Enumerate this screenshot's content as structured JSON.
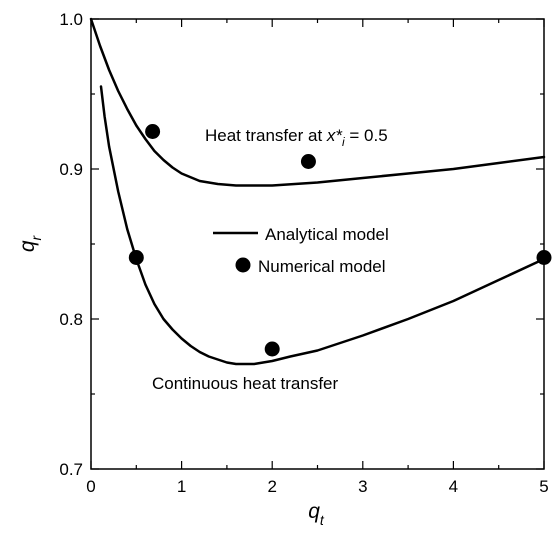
{
  "chart_data": {
    "type": "line",
    "xlabel": {
      "main": "q",
      "sub": "t"
    },
    "ylabel": {
      "main": "q",
      "sub": "r"
    },
    "xlim": [
      0,
      5
    ],
    "ylim": [
      0.7,
      1.0
    ],
    "xticks": [
      0,
      1,
      2,
      3,
      4,
      5
    ],
    "yticks": [
      0.7,
      0.8,
      0.9,
      1.0
    ],
    "xtick_labels": [
      "0",
      "1",
      "2",
      "3",
      "4",
      "5"
    ],
    "ytick_labels": [
      "0.7",
      "0.8",
      "0.9",
      "1.0"
    ],
    "grid": false,
    "legend": {
      "position": "center",
      "entries": [
        {
          "label": "Analytical model",
          "marker": "line"
        },
        {
          "label": "Numerical model",
          "marker": "circle"
        }
      ]
    },
    "annotations": [
      {
        "text_pre": "Heat transfer at ",
        "var": "x*",
        "sub": "i",
        "text_post": " = 0.5"
      },
      {
        "text": "Continuous heat transfer"
      }
    ],
    "series": [
      {
        "kind": "analytical",
        "x": [
          0.0,
          0.1,
          0.2,
          0.3,
          0.4,
          0.5,
          0.6,
          0.7,
          0.8,
          0.9,
          1.0,
          1.2,
          1.4,
          1.6,
          1.8,
          2.0,
          2.5,
          3.0,
          3.5,
          4.0,
          4.5,
          5.0
        ],
        "y": [
          1.0,
          0.982,
          0.966,
          0.952,
          0.94,
          0.929,
          0.92,
          0.912,
          0.906,
          0.901,
          0.897,
          0.892,
          0.89,
          0.889,
          0.889,
          0.889,
          0.891,
          0.894,
          0.897,
          0.9,
          0.904,
          0.908
        ]
      },
      {
        "kind": "analytical",
        "x": [
          0.11,
          0.15,
          0.2,
          0.3,
          0.4,
          0.5,
          0.6,
          0.7,
          0.8,
          0.9,
          1.0,
          1.1,
          1.2,
          1.3,
          1.4,
          1.5,
          1.6,
          1.7,
          1.8,
          1.9,
          2.0,
          2.2,
          2.5,
          3.0,
          3.5,
          4.0,
          4.5,
          5.0
        ],
        "y": [
          0.955,
          0.935,
          0.915,
          0.885,
          0.86,
          0.84,
          0.823,
          0.81,
          0.8,
          0.793,
          0.787,
          0.782,
          0.778,
          0.775,
          0.773,
          0.771,
          0.77,
          0.77,
          0.77,
          0.771,
          0.772,
          0.775,
          0.779,
          0.789,
          0.8,
          0.812,
          0.826,
          0.84
        ]
      },
      {
        "kind": "numerical",
        "x": [
          0.68,
          2.4
        ],
        "y": [
          0.925,
          0.905
        ]
      },
      {
        "kind": "numerical",
        "x": [
          0.5,
          2.0,
          5.0
        ],
        "y": [
          0.841,
          0.78,
          0.841
        ]
      }
    ]
  }
}
